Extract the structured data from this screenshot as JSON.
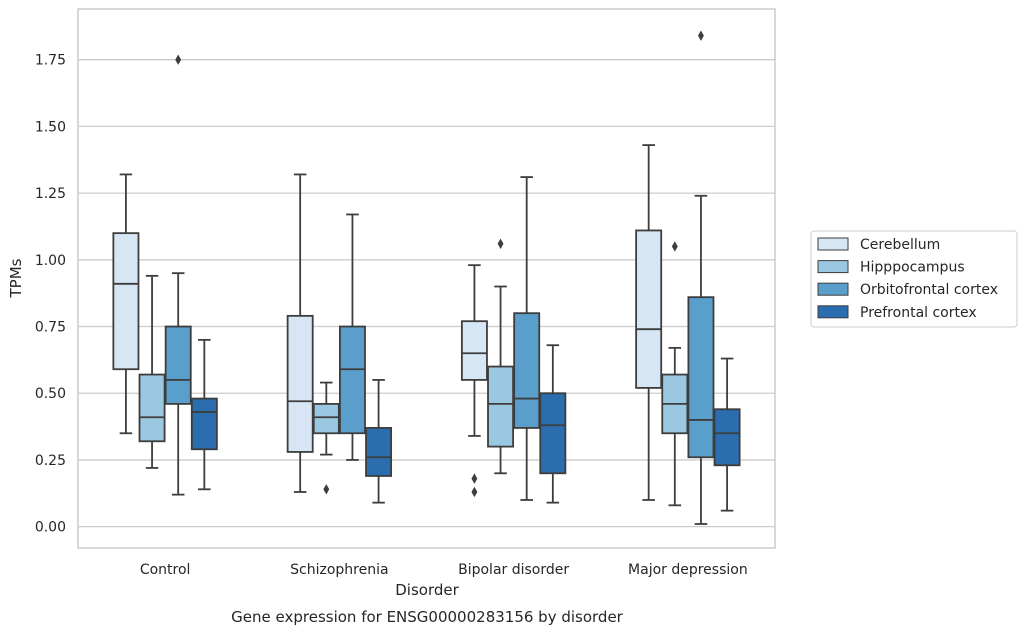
{
  "caption": "Gene expression for ENSG00000283156 by disorder",
  "chart_data": {
    "type": "boxplot",
    "xlabel": "Disorder",
    "ylabel": "TPMs",
    "ylim": [
      -0.08,
      1.94
    ],
    "yticks": [
      0.0,
      0.25,
      0.5,
      0.75,
      1.0,
      1.25,
      1.5,
      1.75
    ],
    "ytick_labels": [
      "0.00",
      "0.25",
      "0.50",
      "0.75",
      "1.00",
      "1.25",
      "1.50",
      "1.75"
    ],
    "grid": "horizontal",
    "legend_position": "right",
    "categories": [
      "Control",
      "Schizophrenia",
      "Bipolar disorder",
      "Major depression"
    ],
    "series": [
      {
        "name": "Cerebellum",
        "color": "#d6e6f4",
        "boxes": [
          {
            "whislo": 0.35,
            "q1": 0.59,
            "med": 0.91,
            "q3": 1.1,
            "whishi": 1.32,
            "fliers": []
          },
          {
            "whislo": 0.13,
            "q1": 0.28,
            "med": 0.47,
            "q3": 0.79,
            "whishi": 1.32,
            "fliers": []
          },
          {
            "whislo": 0.34,
            "q1": 0.55,
            "med": 0.65,
            "q3": 0.77,
            "whishi": 0.98,
            "fliers": [
              0.18,
              0.13
            ]
          },
          {
            "whislo": 0.1,
            "q1": 0.52,
            "med": 0.74,
            "q3": 1.11,
            "whishi": 1.43,
            "fliers": []
          }
        ]
      },
      {
        "name": "Hipppocampus",
        "color": "#9ac8e0",
        "boxes": [
          {
            "whislo": 0.22,
            "q1": 0.32,
            "med": 0.41,
            "q3": 0.57,
            "whishi": 0.94,
            "fliers": []
          },
          {
            "whislo": 0.27,
            "q1": 0.35,
            "med": 0.41,
            "q3": 0.46,
            "whishi": 0.54,
            "fliers": [
              0.14
            ]
          },
          {
            "whislo": 0.2,
            "q1": 0.3,
            "med": 0.46,
            "q3": 0.6,
            "whishi": 0.9,
            "fliers": [
              1.06
            ]
          },
          {
            "whislo": 0.08,
            "q1": 0.35,
            "med": 0.46,
            "q3": 0.57,
            "whishi": 0.67,
            "fliers": [
              1.05
            ]
          }
        ]
      },
      {
        "name": "Orbitofrontal cortex",
        "color": "#5a9ecb",
        "boxes": [
          {
            "whislo": 0.12,
            "q1": 0.46,
            "med": 0.55,
            "q3": 0.75,
            "whishi": 0.95,
            "fliers": [
              1.75
            ]
          },
          {
            "whislo": 0.25,
            "q1": 0.35,
            "med": 0.59,
            "q3": 0.75,
            "whishi": 1.17,
            "fliers": []
          },
          {
            "whislo": 0.1,
            "q1": 0.37,
            "med": 0.48,
            "q3": 0.8,
            "whishi": 1.31,
            "fliers": []
          },
          {
            "whislo": 0.01,
            "q1": 0.26,
            "med": 0.4,
            "q3": 0.86,
            "whishi": 1.24,
            "fliers": [
              1.84
            ]
          }
        ]
      },
      {
        "name": "Prefrontal cortex",
        "color": "#2a6eb0",
        "boxes": [
          {
            "whislo": 0.14,
            "q1": 0.29,
            "med": 0.43,
            "q3": 0.48,
            "whishi": 0.7,
            "fliers": []
          },
          {
            "whislo": 0.09,
            "q1": 0.19,
            "med": 0.26,
            "q3": 0.37,
            "whishi": 0.55,
            "fliers": []
          },
          {
            "whislo": 0.09,
            "q1": 0.2,
            "med": 0.38,
            "q3": 0.5,
            "whishi": 0.68,
            "fliers": []
          },
          {
            "whislo": 0.06,
            "q1": 0.23,
            "med": 0.35,
            "q3": 0.44,
            "whishi": 0.63,
            "fliers": []
          }
        ]
      }
    ]
  }
}
